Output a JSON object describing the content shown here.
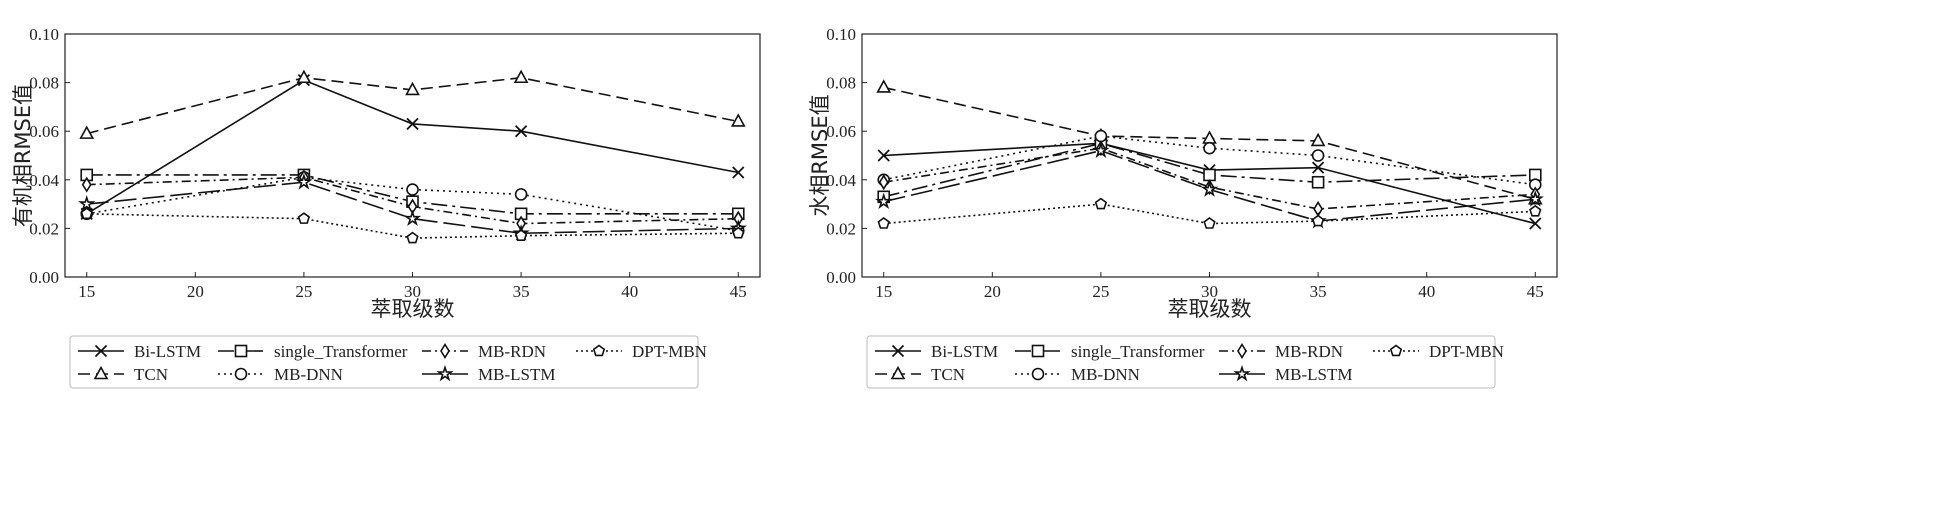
{
  "chart_data": [
    {
      "type": "line",
      "ylabel": "有机相RMSE值",
      "xlabel": "萃取级数",
      "x": [
        15,
        25,
        30,
        35,
        45
      ],
      "xticks": [
        15,
        20,
        25,
        30,
        35,
        40,
        45
      ],
      "yticks": [
        "0.00",
        "0.02",
        "0.04",
        "0.06",
        "0.08",
        "0.10"
      ],
      "xlim": [
        14,
        46
      ],
      "ylim": [
        0,
        0.1
      ],
      "series": [
        {
          "name": "Bi-LSTM",
          "values": [
            0.026,
            0.081,
            0.063,
            0.06,
            0.043
          ]
        },
        {
          "name": "TCN",
          "values": [
            0.059,
            0.082,
            0.077,
            0.082,
            0.064
          ]
        },
        {
          "name": "single_Transformer",
          "values": [
            0.042,
            0.042,
            0.031,
            0.026,
            0.026
          ]
        },
        {
          "name": "MB-DNN",
          "values": [
            0.026,
            0.041,
            0.036,
            0.034,
            0.019
          ]
        },
        {
          "name": "MB-RDN",
          "values": [
            0.038,
            0.041,
            0.029,
            0.022,
            0.024
          ]
        },
        {
          "name": "MB-LSTM",
          "values": [
            0.03,
            0.039,
            0.024,
            0.018,
            0.02
          ]
        },
        {
          "name": "DPT-MBN",
          "values": [
            0.026,
            0.024,
            0.016,
            0.017,
            0.018
          ]
        }
      ]
    },
    {
      "type": "line",
      "ylabel": "水相RMSE值",
      "xlabel": "萃取级数",
      "x": [
        15,
        25,
        30,
        35,
        45
      ],
      "xticks": [
        15,
        20,
        25,
        30,
        35,
        40,
        45
      ],
      "yticks": [
        "0.00",
        "0.02",
        "0.04",
        "0.06",
        "0.08",
        "0.10"
      ],
      "xlim": [
        14,
        46
      ],
      "ylim": [
        0,
        0.1
      ],
      "series": [
        {
          "name": "Bi-LSTM",
          "values": [
            0.05,
            0.055,
            0.044,
            0.045,
            0.022
          ]
        },
        {
          "name": "TCN",
          "values": [
            0.078,
            0.058,
            0.057,
            0.056,
            0.032
          ]
        },
        {
          "name": "single_Transformer",
          "values": [
            0.033,
            0.055,
            0.042,
            0.039,
            0.042
          ]
        },
        {
          "name": "MB-DNN",
          "values": [
            0.04,
            0.058,
            0.053,
            0.05,
            0.038
          ]
        },
        {
          "name": "MB-RDN",
          "values": [
            0.039,
            0.053,
            0.037,
            0.028,
            0.034
          ]
        },
        {
          "name": "MB-LSTM",
          "values": [
            0.031,
            0.052,
            0.036,
            0.023,
            0.032
          ]
        },
        {
          "name": "DPT-MBN",
          "values": [
            0.022,
            0.03,
            0.022,
            0.023,
            0.027
          ]
        }
      ]
    }
  ],
  "legend": [
    {
      "name": "Bi-LSTM",
      "style": "solid",
      "marker": "x"
    },
    {
      "name": "single_Transformer",
      "style": "longdashdot",
      "marker": "square"
    },
    {
      "name": "MB-RDN",
      "style": "dashdot",
      "marker": "diamond"
    },
    {
      "name": "DPT-MBN",
      "style": "dot",
      "marker": "pentagon"
    },
    {
      "name": "TCN",
      "style": "dash",
      "marker": "triangle"
    },
    {
      "name": "MB-DNN",
      "style": "dot",
      "marker": "circle"
    },
    {
      "name": "MB-LSTM",
      "style": "longdash",
      "marker": "star"
    }
  ]
}
